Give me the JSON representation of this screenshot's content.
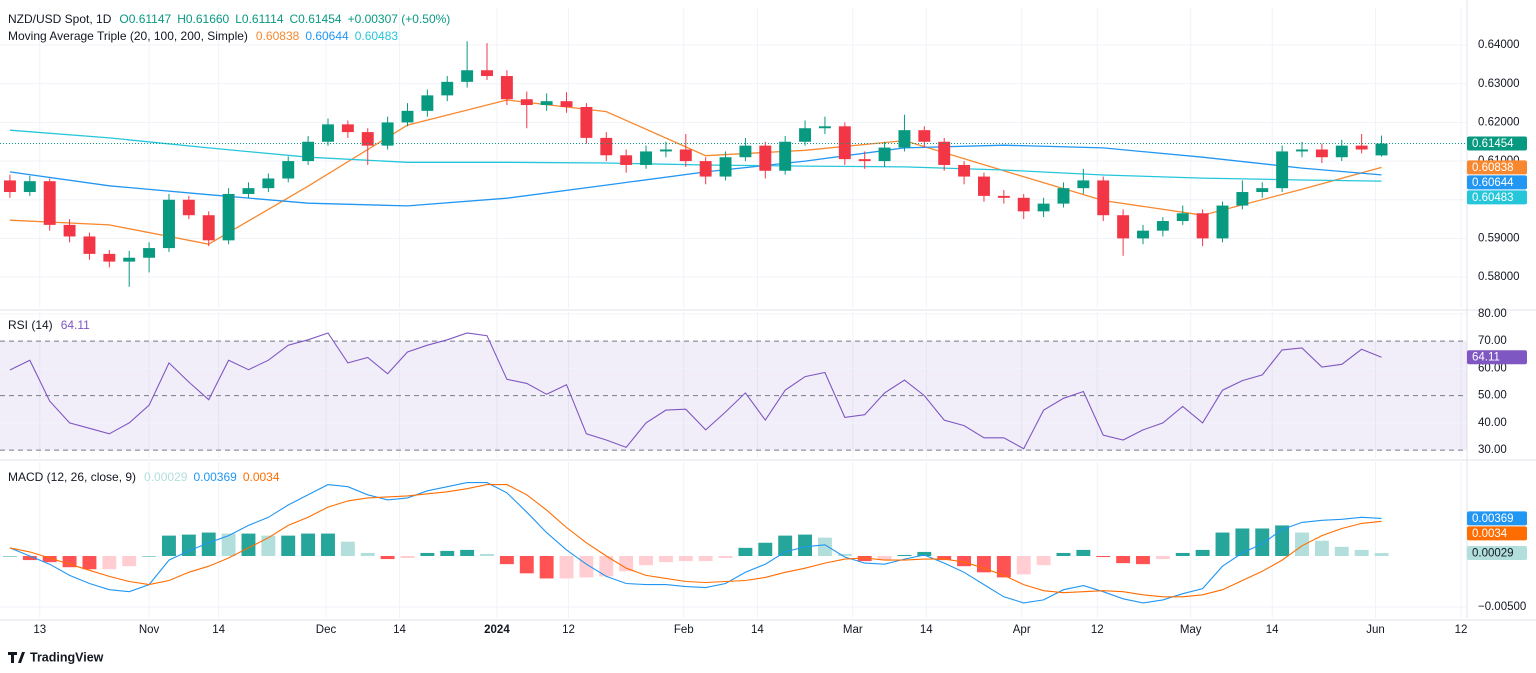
{
  "chart_data": [
    {
      "type": "candlestick",
      "title": "NZD/USD Spot, 1D",
      "ohlc_header": [
        "O0.61147",
        "H0.61660",
        "L0.61114",
        "C0.61454"
      ],
      "change": "+0.00307 (+0.50%)",
      "open": [
        0.605,
        0.602,
        0.6048,
        0.5935,
        0.5905,
        0.586,
        0.584,
        0.585,
        0.5875,
        0.6,
        0.596,
        0.5895,
        0.6015,
        0.603,
        0.6055,
        0.61,
        0.615,
        0.6195,
        0.6175,
        0.614,
        0.62,
        0.623,
        0.627,
        0.6305,
        0.6335,
        0.632,
        0.626,
        0.6245,
        0.6255,
        0.624,
        0.616,
        0.6115,
        0.609,
        0.6125,
        0.613,
        0.61,
        0.606,
        0.611,
        0.614,
        0.6075,
        0.615,
        0.6185,
        0.619,
        0.6105,
        0.61,
        0.6135,
        0.618,
        0.615,
        0.609,
        0.606,
        0.601,
        0.6005,
        0.597,
        0.599,
        0.603,
        0.605,
        0.596,
        0.59,
        0.592,
        0.5945,
        0.5965,
        0.59,
        0.5985,
        0.602,
        0.603,
        0.6125,
        0.613,
        0.611,
        0.614,
        0.61147
      ],
      "high": [
        0.6065,
        0.6062,
        0.6055,
        0.595,
        0.5915,
        0.587,
        0.5868,
        0.589,
        0.6015,
        0.601,
        0.597,
        0.603,
        0.6045,
        0.6068,
        0.6112,
        0.6165,
        0.621,
        0.6205,
        0.6185,
        0.6215,
        0.625,
        0.6285,
        0.632,
        0.641,
        0.6405,
        0.6335,
        0.628,
        0.6275,
        0.6278,
        0.625,
        0.6175,
        0.613,
        0.614,
        0.615,
        0.617,
        0.611,
        0.6125,
        0.616,
        0.615,
        0.6165,
        0.6205,
        0.6215,
        0.62,
        0.6125,
        0.615,
        0.622,
        0.619,
        0.616,
        0.61,
        0.607,
        0.6025,
        0.6015,
        0.6005,
        0.6045,
        0.608,
        0.606,
        0.5975,
        0.5935,
        0.5955,
        0.5985,
        0.5975,
        0.5995,
        0.605,
        0.6045,
        0.614,
        0.615,
        0.6145,
        0.6155,
        0.617,
        0.6166
      ],
      "low": [
        0.6005,
        0.601,
        0.592,
        0.589,
        0.5845,
        0.5825,
        0.5775,
        0.5812,
        0.5865,
        0.595,
        0.588,
        0.5885,
        0.6005,
        0.602,
        0.6045,
        0.609,
        0.614,
        0.616,
        0.609,
        0.613,
        0.619,
        0.6215,
        0.6255,
        0.629,
        0.631,
        0.6245,
        0.6185,
        0.623,
        0.6225,
        0.6145,
        0.61,
        0.607,
        0.608,
        0.611,
        0.6085,
        0.604,
        0.605,
        0.61,
        0.6055,
        0.6065,
        0.614,
        0.617,
        0.609,
        0.608,
        0.6085,
        0.6125,
        0.6135,
        0.6075,
        0.604,
        0.5995,
        0.599,
        0.595,
        0.5955,
        0.598,
        0.6015,
        0.5945,
        0.5855,
        0.5885,
        0.5905,
        0.5935,
        0.588,
        0.589,
        0.5975,
        0.6005,
        0.602,
        0.611,
        0.6095,
        0.61,
        0.612,
        0.61114
      ],
      "close": [
        0.602,
        0.6048,
        0.5935,
        0.5905,
        0.586,
        0.584,
        0.585,
        0.5875,
        0.6,
        0.596,
        0.5895,
        0.6015,
        0.603,
        0.6055,
        0.61,
        0.615,
        0.6195,
        0.6175,
        0.614,
        0.62,
        0.623,
        0.627,
        0.6305,
        0.6335,
        0.632,
        0.626,
        0.6245,
        0.6255,
        0.624,
        0.616,
        0.6115,
        0.609,
        0.6125,
        0.613,
        0.61,
        0.606,
        0.611,
        0.614,
        0.6075,
        0.615,
        0.6185,
        0.619,
        0.6105,
        0.61,
        0.6135,
        0.618,
        0.615,
        0.609,
        0.606,
        0.601,
        0.6005,
        0.597,
        0.599,
        0.603,
        0.605,
        0.596,
        0.59,
        0.592,
        0.5945,
        0.5965,
        0.59,
        0.5985,
        0.602,
        0.603,
        0.6125,
        0.613,
        0.611,
        0.614,
        0.613,
        0.61454
      ],
      "up_color": "#089981",
      "down_color": "#f23645",
      "overlay": {
        "title": "Moving Average Triple (20, 100, 200, Simple)",
        "x": [
          0,
          5,
          10,
          15,
          20,
          25,
          30,
          35,
          40,
          45,
          50,
          55,
          60,
          65,
          69
        ],
        "series": [
          {
            "color": "#f7882f",
            "values": [
              0.5947,
              0.5935,
              0.5885,
              0.6035,
              0.6193,
              0.6258,
              0.6228,
              0.6114,
              0.6128,
              0.6153,
              0.6075,
              0.5998,
              0.596,
              0.6027,
              0.60838
            ]
          },
          {
            "color": "#2196f3",
            "values": [
              0.6072,
              0.6036,
              0.6013,
              0.5991,
              0.5984,
              0.6004,
              0.6038,
              0.6072,
              0.61,
              0.6134,
              0.6141,
              0.6134,
              0.611,
              0.6082,
              0.60644
            ]
          },
          {
            "color": "#26c6da",
            "values": [
              0.618,
              0.616,
              0.6134,
              0.611,
              0.6097,
              0.6097,
              0.6095,
              0.609,
              0.6087,
              0.6085,
              0.6077,
              0.6064,
              0.6056,
              0.6051,
              0.60483
            ]
          }
        ]
      },
      "ylim": [
        0.572,
        0.6496
      ],
      "yticks": [
        {
          "value": 0.58,
          "label": "0.58000"
        },
        {
          "value": 0.59,
          "label": "0.59000"
        },
        {
          "value": 0.6,
          "label": "0.60000"
        },
        {
          "value": 0.61,
          "label": "0.61000"
        },
        {
          "value": 0.62,
          "label": "0.62000"
        },
        {
          "value": 0.63,
          "label": "0.63000"
        },
        {
          "value": 0.64,
          "label": "0.64000"
        }
      ],
      "grid": true,
      "last_price_line": true
    },
    {
      "type": "line",
      "title": "RSI (14)",
      "color": "#7e57c2",
      "values": [
        59.4,
        63,
        48,
        40,
        38,
        36,
        40,
        46.5,
        62,
        55,
        48.5,
        63,
        59.5,
        63,
        68.5,
        70.5,
        73,
        62,
        64,
        58,
        66,
        68.5,
        70.5,
        73,
        72,
        56,
        54.5,
        50.5,
        54,
        36,
        33.7,
        31,
        40,
        44.7,
        45,
        37.4,
        44,
        51,
        41,
        52,
        57,
        58.5,
        42,
        43,
        51,
        55.7,
        50,
        41,
        39,
        34.5,
        34.5,
        30.5,
        44.7,
        49,
        51.5,
        35.5,
        33.7,
        37.4,
        40,
        46,
        40,
        52,
        55.5,
        57.6,
        66.8,
        67.5,
        60.5,
        61.5,
        67,
        64.11
      ],
      "band": [
        30,
        70
      ],
      "midline": 50,
      "band_color": "#7e57c2",
      "ylim": [
        27.1,
        80.7
      ],
      "yticks": [
        {
          "value": 30,
          "label": "30.00"
        },
        {
          "value": 40,
          "label": "40.00"
        },
        {
          "value": 50,
          "label": "50.00"
        },
        {
          "value": 60,
          "label": "60.00"
        },
        {
          "value": 70,
          "label": "70.00"
        },
        {
          "value": 80,
          "label": "80.00"
        }
      ],
      "grid": true
    },
    {
      "type": "macd",
      "title": "MACD (12, 26, close, 9)",
      "series": [
        {
          "color": "#2196f3",
          "values": [
            0.0008,
            0.0,
            -0.0008,
            -0.0019,
            -0.0027,
            -0.0033,
            -0.0035,
            -0.0028,
            -0.0004,
            0.0005,
            0.0013,
            0.002,
            0.003,
            0.0038,
            0.005,
            0.006,
            0.007,
            0.0068,
            0.006,
            0.0055,
            0.0057,
            0.0064,
            0.0068,
            0.0072,
            0.0072,
            0.0062,
            0.0043,
            0.0023,
            0.0006,
            -0.0008,
            -0.002,
            -0.0027,
            -0.0028,
            -0.0028,
            -0.003,
            -0.0031,
            -0.0027,
            -0.0016,
            -0.0008,
            0.0004,
            0.0009,
            0.0011,
            -0.0001,
            -0.0007,
            -0.0008,
            -0.0003,
            0.0001,
            -0.0007,
            -0.0016,
            -0.0028,
            -0.004,
            -0.0046,
            -0.0043,
            -0.0033,
            -0.0029,
            -0.0035,
            -0.0042,
            -0.0046,
            -0.0043,
            -0.0037,
            -0.0032,
            -0.001,
            0.0003,
            0.0012,
            0.0026,
            0.0033,
            0.0035,
            0.0036,
            0.0038,
            0.00369
          ]
        },
        {
          "color": "#ff6d00",
          "values": [
            0.0008,
            0.0004,
            -0.0002,
            -0.0008,
            -0.0014,
            -0.002,
            -0.0025,
            -0.0028,
            -0.0024,
            -0.0016,
            -0.001,
            -0.0002,
            0.0008,
            0.0018,
            0.003,
            0.0038,
            0.0048,
            0.0054,
            0.0057,
            0.0058,
            0.0059,
            0.0061,
            0.0063,
            0.0066,
            0.007,
            0.007,
            0.006,
            0.0045,
            0.0028,
            0.0013,
            0.0,
            -0.0012,
            -0.0019,
            -0.0022,
            -0.0025,
            -0.0026,
            -0.0025,
            -0.0024,
            -0.0021,
            -0.0016,
            -0.0012,
            -0.0007,
            -0.0003,
            -0.0002,
            -0.0004,
            -0.0004,
            -0.0003,
            -0.0003,
            -0.0006,
            -0.0012,
            -0.0019,
            -0.0028,
            -0.0034,
            -0.0036,
            -0.0035,
            -0.0034,
            -0.0035,
            -0.0038,
            -0.004,
            -0.004,
            -0.0038,
            -0.0033,
            -0.0024,
            -0.0015,
            -0.0004,
            0.001,
            0.002,
            0.0027,
            0.0032,
            0.0034
          ]
        }
      ],
      "histogram": {
        "values": [
          0,
          -0.0004,
          -0.0006,
          -0.0011,
          -0.0013,
          -0.0013,
          -0.001,
          0,
          0.002,
          0.0021,
          0.0023,
          0.0022,
          0.0022,
          0.002,
          0.002,
          0.0022,
          0.0022,
          0.0014,
          0.0003,
          -0.0003,
          -0.0002,
          0.0003,
          0.0005,
          0.0006,
          0.0002,
          -0.0008,
          -0.0017,
          -0.0022,
          -0.0022,
          -0.0021,
          -0.002,
          -0.0015,
          -0.0009,
          -0.0006,
          -0.0005,
          -0.0005,
          -0.0002,
          0.0008,
          0.0013,
          0.002,
          0.0021,
          0.0018,
          0.0002,
          -0.0005,
          -0.0004,
          0.0001,
          0.0004,
          -0.0004,
          -0.001,
          -0.0016,
          -0.0021,
          -0.0018,
          -0.0009,
          0.0003,
          0.0006,
          -0.0001,
          -0.0007,
          -0.0008,
          -0.0003,
          0.0003,
          0.0006,
          0.0023,
          0.0027,
          0.0027,
          0.003,
          0.0023,
          0.0015,
          0.0009,
          0.0006,
          0.00029
        ],
        "colors": [
          "#26a69a",
          "#b2dfdb",
          "#ffcdd2",
          "#ff5252"
        ]
      },
      "ylim": [
        -0.00608,
        0.00922
      ],
      "yticks": [
        {
          "value": -0.005,
          "label": "−0.00500"
        }
      ],
      "xlim": [
        -0.5,
        73.3
      ],
      "xticks": [
        {
          "value": 1.5,
          "label": "13"
        },
        {
          "value": 7.0,
          "label": "Nov"
        },
        {
          "value": 10.5,
          "label": "14"
        },
        {
          "value": 15.9,
          "label": "Dec"
        },
        {
          "value": 19.6,
          "label": "14"
        },
        {
          "value": 24.5,
          "label": "2024"
        },
        {
          "value": 28.1,
          "label": "12"
        },
        {
          "value": 33.9,
          "label": "Feb"
        },
        {
          "value": 37.6,
          "label": "14"
        },
        {
          "value": 42.4,
          "label": "Mar"
        },
        {
          "value": 46.1,
          "label": "14"
        },
        {
          "value": 50.9,
          "label": "Apr"
        },
        {
          "value": 54.7,
          "label": "12"
        },
        {
          "value": 59.4,
          "label": "May"
        },
        {
          "value": 63.5,
          "label": "14"
        },
        {
          "value": 68.7,
          "label": "Jun"
        },
        {
          "value": 73.0,
          "label": "12"
        }
      ],
      "grid": true
    }
  ],
  "brand": "TradingView"
}
